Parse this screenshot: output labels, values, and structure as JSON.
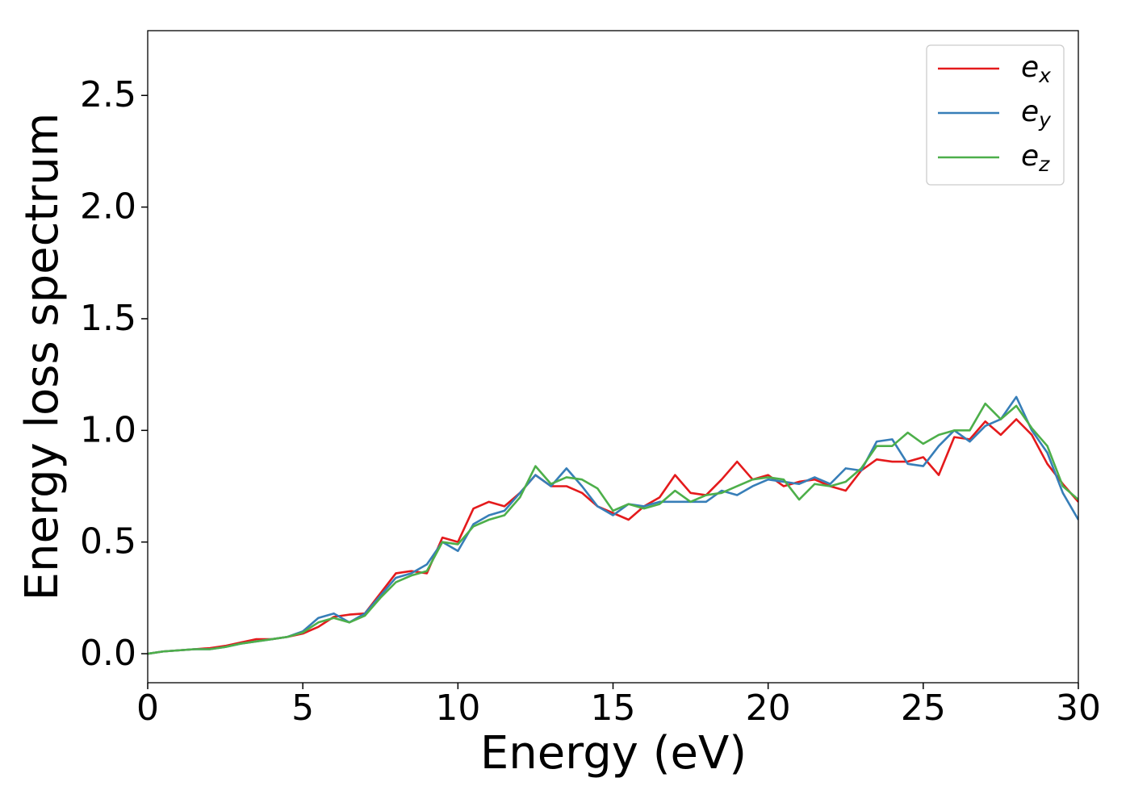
{
  "chart_data": {
    "type": "line",
    "xlabel": "Energy (eV)",
    "ylabel": "Energy loss spectrum",
    "x": [
      0,
      0.5,
      1,
      1.5,
      2,
      2.5,
      3,
      3.5,
      4,
      4.5,
      5,
      5.5,
      6,
      6.5,
      7,
      7.5,
      8,
      8.5,
      9,
      9.5,
      10,
      10.5,
      11,
      11.5,
      12,
      12.5,
      13,
      13.5,
      14,
      14.5,
      15,
      15.5,
      16,
      16.5,
      17,
      17.5,
      18,
      18.5,
      19,
      19.5,
      20,
      20.5,
      21,
      21.5,
      22,
      22.5,
      23,
      23.5,
      24,
      24.5,
      25,
      25.5,
      26,
      26.5,
      27,
      27.5,
      28,
      28.5,
      29,
      29.5,
      30
    ],
    "series": [
      {
        "name": "ex",
        "color": "#e41a1c",
        "values": [
          0,
          0.01,
          0.015,
          0.02,
          0.025,
          0.035,
          0.05,
          0.065,
          0.065,
          0.075,
          0.09,
          0.12,
          0.165,
          0.175,
          0.18,
          0.27,
          0.36,
          0.37,
          0.36,
          0.52,
          0.5,
          0.65,
          0.68,
          0.66,
          0.72,
          0.8,
          0.75,
          0.75,
          0.72,
          0.66,
          0.63,
          0.6,
          0.66,
          0.7,
          0.8,
          0.72,
          0.71,
          0.78,
          0.86,
          0.78,
          0.8,
          0.75,
          0.77,
          0.78,
          0.75,
          0.73,
          0.82,
          0.87,
          0.86,
          0.86,
          0.88,
          0.8,
          0.97,
          0.96,
          1.04,
          0.98,
          1.05,
          0.98,
          0.85,
          0.76,
          0.68
        ]
      },
      {
        "name": "ey",
        "color": "#377eb8",
        "values": [
          0,
          0.01,
          0.015,
          0.02,
          0.02,
          0.03,
          0.045,
          0.055,
          0.065,
          0.075,
          0.1,
          0.16,
          0.18,
          0.14,
          0.18,
          0.26,
          0.34,
          0.36,
          0.4,
          0.5,
          0.46,
          0.58,
          0.62,
          0.64,
          0.72,
          0.8,
          0.75,
          0.83,
          0.75,
          0.66,
          0.62,
          0.67,
          0.66,
          0.68,
          0.68,
          0.68,
          0.68,
          0.73,
          0.71,
          0.75,
          0.78,
          0.77,
          0.76,
          0.79,
          0.76,
          0.83,
          0.82,
          0.95,
          0.96,
          0.85,
          0.84,
          0.93,
          1.0,
          0.95,
          1.02,
          1.05,
          1.15,
          1.0,
          0.9,
          0.72,
          0.6
        ]
      },
      {
        "name": "ez",
        "color": "#4daf4a",
        "values": [
          0,
          0.01,
          0.015,
          0.02,
          0.02,
          0.03,
          0.045,
          0.055,
          0.065,
          0.075,
          0.095,
          0.14,
          0.16,
          0.14,
          0.17,
          0.25,
          0.32,
          0.35,
          0.37,
          0.5,
          0.49,
          0.57,
          0.6,
          0.62,
          0.7,
          0.84,
          0.76,
          0.79,
          0.78,
          0.74,
          0.64,
          0.67,
          0.65,
          0.67,
          0.73,
          0.68,
          0.71,
          0.72,
          0.75,
          0.78,
          0.79,
          0.78,
          0.69,
          0.76,
          0.75,
          0.77,
          0.83,
          0.93,
          0.93,
          0.99,
          0.94,
          0.98,
          1.0,
          1.0,
          1.12,
          1.05,
          1.11,
          1.01,
          0.93,
          0.75,
          0.69
        ]
      }
    ],
    "xlim": [
      0,
      30
    ],
    "ylim": [
      -0.13,
      2.79
    ],
    "xticks": [
      0,
      5,
      10,
      15,
      20,
      25,
      30
    ],
    "yticks": [
      {
        "value": 0,
        "label": "0.0"
      },
      0.5,
      {
        "value": 1,
        "label": "1.0"
      },
      1.5,
      {
        "value": 2,
        "label": "2.0"
      },
      2.5
    ],
    "legend": "upper right"
  }
}
